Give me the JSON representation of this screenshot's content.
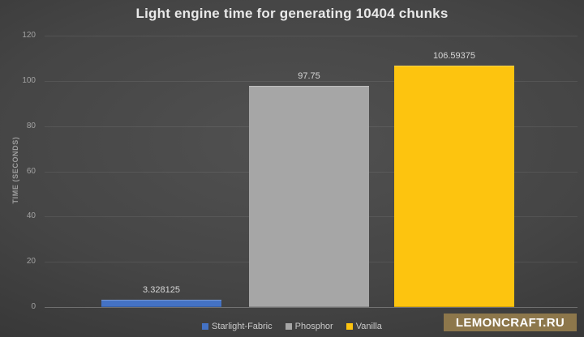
{
  "chart_data": {
    "type": "bar",
    "title": "Light engine time for generating 10404 chunks",
    "xlabel": "",
    "ylabel": "TIME (SECONDS)",
    "categories": [
      "Starlight-Fabric",
      "Phosphor",
      "Vanilla"
    ],
    "values": [
      3.328125,
      97.75,
      106.59375
    ],
    "data_labels": [
      "3.328125",
      "97.75",
      "106.59375"
    ],
    "colors": [
      "#4472c4",
      "#a6a6a6",
      "#fdc40f"
    ],
    "ylim": [
      0,
      120
    ],
    "ytick_interval": 20,
    "ytick_labels": [
      "0",
      "20",
      "40",
      "60",
      "80",
      "100",
      "120"
    ],
    "grid": true,
    "legend_position": "bottom",
    "background": "dark-vignette"
  },
  "watermark": {
    "text": "LEMONCRAFT.RU",
    "bg_color": "#8d774b"
  }
}
